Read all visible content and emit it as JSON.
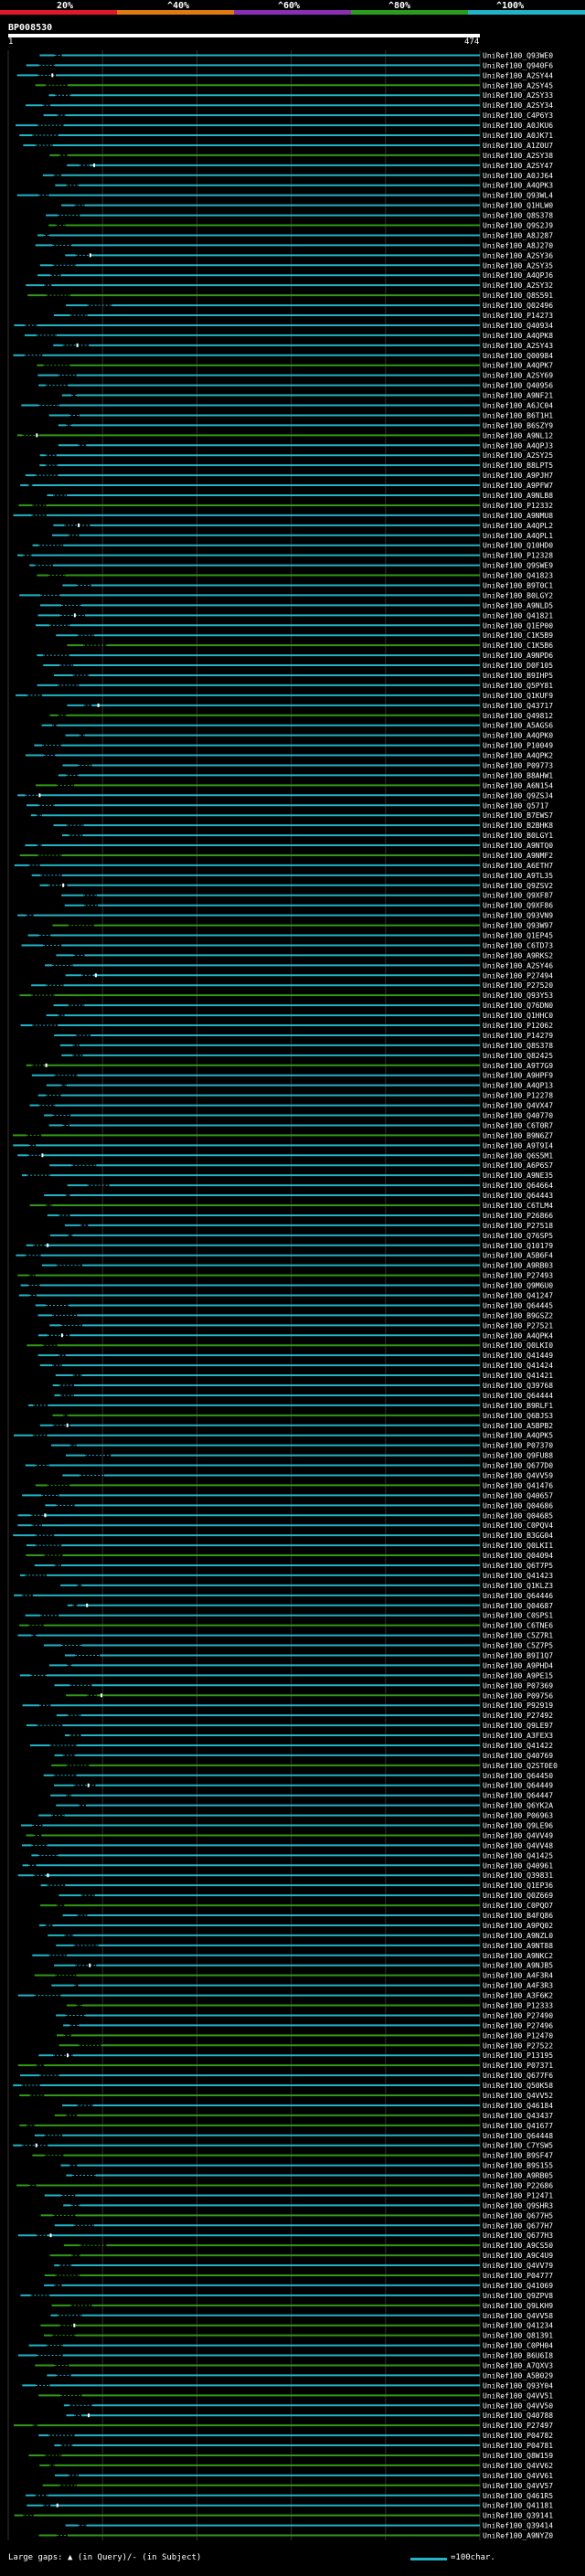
{
  "legend": {
    "labels": [
      "20%",
      "^40%",
      "^60%",
      "^80%",
      "^100%"
    ],
    "colors": [
      "#e0182a",
      "#e07a12",
      "#8a2fb5",
      "#2a9c1e",
      "#21b3c8"
    ]
  },
  "query": {
    "id": "BP008530",
    "start": "1",
    "end": "474"
  },
  "footer": {
    "gaps_text": "Large gaps: ▲ (in Query)/- (in Subject)",
    "scale_text": "=100char."
  },
  "colors": {
    "cyan": "#21b3c8",
    "green": "#2f9a15",
    "gap": "#ffffff",
    "background": "#000000"
  },
  "hits": [
    "UniRef100_Q93WE0",
    "UniRef100_Q940F6",
    "UniRef100_A2SY44",
    "UniRef100_A2SY45",
    "UniRef100_A2SY33",
    "UniRef100_A2SY34",
    "UniRef100_C4P6Y3",
    "UniRef100_A0JKU6",
    "UniRef100_A0JK71",
    "UniRef100_A1Z0U7",
    "UniRef100_A2SY38",
    "UniRef100_A2SY47",
    "UniRef100_A0JJ64",
    "UniRef100_A4QPK3",
    "UniRef100_Q93WL4",
    "UniRef100_Q1HLW0",
    "UniRef100_Q8S378",
    "UniRef100_Q9S2J9",
    "UniRef100_A8J287",
    "UniRef100_A8J270",
    "UniRef100_A2SY36",
    "UniRef100_A2SY35",
    "UniRef100_A4QPJ6",
    "UniRef100_A2SY32",
    "UniRef100_Q8S591",
    "UniRef100_Q02496",
    "UniRef100_P14273",
    "UniRef100_Q40934",
    "UniRef100_A4QPK8",
    "UniRef100_A2SY43",
    "UniRef100_Q00984",
    "UniRef100_A4QPK7",
    "UniRef100_A2SY69",
    "UniRef100_Q40956",
    "UniRef100_A9NF21",
    "UniRef100_A6JC04",
    "UniRef100_B6T1H1",
    "UniRef100_B6SZY9",
    "UniRef100_A9NL12",
    "UniRef100_A4QPJ3",
    "UniRef100_A2SY25",
    "UniRef100_B8LPT5",
    "UniRef100_A9PJH7",
    "UniRef100_A9PFW7",
    "UniRef100_A9NLB8",
    "UniRef100_P12332",
    "UniRef100_A9NMU8",
    "UniRef100_A4QPL2",
    "UniRef100_A4QPL1",
    "UniRef100_Q10HD0",
    "UniRef100_P12328",
    "UniRef100_Q9SWE9",
    "UniRef100_Q41823",
    "UniRef100_B9T0C1",
    "UniRef100_B0LGY2",
    "UniRef100_A9NLD5",
    "UniRef100_Q41821",
    "UniRef100_Q1EP00",
    "UniRef100_C1K5B9",
    "UniRef100_C1K5B6",
    "UniRef100_A9NPD6",
    "UniRef100_D0F105",
    "UniRef100_B9IHP5",
    "UniRef100_Q5PY81",
    "UniRef100_Q1KUF9",
    "UniRef100_Q43717",
    "UniRef100_Q49812",
    "UniRef100_A5AGS6",
    "UniRef100_A4QPK0",
    "UniRef100_P10049",
    "UniRef100_A4QPK2",
    "UniRef100_P09773",
    "UniRef100_B8AHW1",
    "UniRef100_A6N154",
    "UniRef100_Q9ZSJ4",
    "UniRef100_Q5717",
    "UniRef100_B7EWS7",
    "UniRef100_B2BHK8",
    "UniRef100_B0LGY1",
    "UniRef100_A9NTQ0",
    "UniRef100_A9NMF2",
    "UniRef100_A6ETH7",
    "UniRef100_A9TL35",
    "UniRef100_Q9ZSV2",
    "UniRef100_Q9XF87",
    "UniRef100_Q9XF86",
    "UniRef100_Q93VN9",
    "UniRef100_Q93W97",
    "UniRef100_Q1EP45",
    "UniRef100_C6TD73",
    "UniRef100_A9RKS2",
    "UniRef100_A2SY46",
    "UniRef100_P27494",
    "UniRef100_P27520",
    "UniRef100_Q93Y53",
    "UniRef100_Q76DN0",
    "UniRef100_Q1HHC0",
    "UniRef100_P12062",
    "UniRef100_P14279",
    "UniRef100_Q8S378",
    "UniRef100_Q82425",
    "UniRef100_A9T7G9",
    "UniRef100_A9HPF9",
    "UniRef100_A4QP13",
    "UniRef100_P12278",
    "UniRef100_Q4VX47",
    "UniRef100_Q40770",
    "UniRef100_C6T0R7",
    "UniRef100_B9N6Z7",
    "UniRef100_A9T9I4",
    "UniRef100_Q6S5M1",
    "UniRef100_A6P6S7",
    "UniRef100_A9NE35",
    "UniRef100_Q64664",
    "UniRef100_Q64443",
    "UniRef100_C6TLM4",
    "UniRef100_P26866",
    "UniRef100_P27518",
    "UniRef100_Q76SP5",
    "UniRef100_Q10179",
    "UniRef100_A5B6F4",
    "UniRef100_A9RB03",
    "UniRef100_P27493",
    "UniRef100_Q9M6U0",
    "UniRef100_Q41247",
    "UniRef100_Q64445",
    "UniRef100_B9GSZ2",
    "UniRef100_P27521",
    "UniRef100_A4QPK4",
    "UniRef100_Q0LKI0",
    "UniRef100_Q41449",
    "UniRef100_Q41424",
    "UniRef100_Q41421",
    "UniRef100_Q39768",
    "UniRef100_Q64444",
    "UniRef100_B9RLF1",
    "UniRef100_Q6BJS3",
    "UniRef100_A5BPB2",
    "UniRef100_A4QPK5",
    "UniRef100_P07370",
    "UniRef100_Q9FU88",
    "UniRef100_Q677D0",
    "UniRef100_Q4VV59",
    "UniRef100_Q41476",
    "UniRef100_Q40657",
    "UniRef100_Q04686",
    "UniRef100_Q04685",
    "UniRef100_C0PQV4",
    "UniRef100_B3GG04",
    "UniRef100_Q0LKI1",
    "UniRef100_Q04094",
    "UniRef100_Q6T7P5",
    "UniRef100_Q41423",
    "UniRef100_Q1KLZ3",
    "UniRef100_Q64446",
    "UniRef100_Q04687",
    "UniRef100_C0SPS1",
    "UniRef100_C6TNE6",
    "UniRef100_C5Z7R1",
    "UniRef100_C5Z7P5",
    "UniRef100_B9I1Q7",
    "UniRef100_A9PHD4",
    "UniRef100_A9PE15",
    "UniRef100_P07369",
    "UniRef100_P09756",
    "UniRef100_P92919",
    "UniRef100_P27492",
    "UniRef100_Q9LE97",
    "UniRef100_A3FEX3",
    "UniRef100_Q41422",
    "UniRef100_Q40769",
    "UniRef100_Q2ST0E0",
    "UniRef100_Q64450",
    "UniRef100_Q64449",
    "UniRef100_Q64447",
    "UniRef100_Q6YK2A",
    "UniRef100_P06963",
    "UniRef100_Q9LE96",
    "UniRef100_Q4VV49",
    "UniRef100_Q4VV48",
    "UniRef100_Q41425",
    "UniRef100_Q40961",
    "UniRef100_Q39831",
    "UniRef100_Q1EP36",
    "UniRef100_Q0Z669",
    "UniRef100_C0PQO7",
    "UniRef100_B4FQ86",
    "UniRef100_A9PQ02",
    "UniRef100_A9NZL0",
    "UniRef100_A9NT88",
    "UniRef100_A9NKC2",
    "UniRef100_A9NJB5",
    "UniRef100_A4F3R4",
    "UniRef100_A4F3R3",
    "UniRef100_A3F6K2",
    "UniRef100_P12333",
    "UniRef100_P27490",
    "UniRef100_P27496",
    "UniRef100_P12470",
    "UniRef100_P27522",
    "UniRef100_P13195",
    "UniRef100_P07371",
    "UniRef100_Q677F6",
    "UniRef100_Q50K58",
    "UniRef100_Q4VV52",
    "UniRef100_Q46184",
    "UniRef100_Q43437",
    "UniRef100_Q41677",
    "UniRef100_Q64448",
    "UniRef100_C7YSW5",
    "UniRef100_B9SF47",
    "UniRef100_B9S155",
    "UniRef100_A9RB05",
    "UniRef100_P22686",
    "UniRef100_P12471",
    "UniRef100_Q9SHR3",
    "UniRef100_Q677H5",
    "UniRef100_Q677H7",
    "UniRef100_Q677H3",
    "UniRef100_A9CS50",
    "UniRef100_A9C4U9",
    "UniRef100_Q4VV79",
    "UniRef100_P04777",
    "UniRef100_Q41069",
    "UniRef100_Q9ZPV8",
    "UniRef100_Q9LKH9",
    "UniRef100_Q4VV58",
    "UniRef100_Q41234",
    "UniRef100_Q81391",
    "UniRef100_C0PH04",
    "UniRef100_B6U6I8",
    "UniRef100_A7QXV3",
    "UniRef100_A5B029",
    "UniRef100_Q93Y04",
    "UniRef100_Q4VV51",
    "UniRef100_Q4VV50",
    "UniRef100_Q40788",
    "UniRef100_P27497",
    "UniRef100_P04782",
    "UniRef100_P04781",
    "UniRef100_Q8W159",
    "UniRef100_Q4VV62",
    "UniRef100_Q4VV61",
    "UniRef100_Q4VV57",
    "UniRef100_Q461R5",
    "UniRef100_Q41181",
    "UniRef100_Q39141",
    "UniRef100_Q39414",
    "UniRef100_A9NYZ0"
  ]
}
